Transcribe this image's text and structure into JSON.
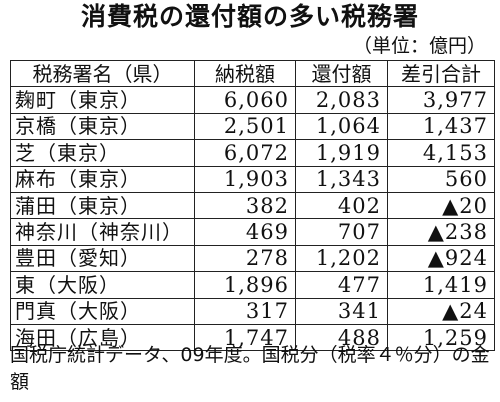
{
  "title": "消費税の還付額の多い税務署",
  "unit": "（単位：億円）",
  "table": {
    "headers": [
      "税務署名（県）",
      "納税額",
      "還付額",
      "差引合計"
    ],
    "rows": [
      {
        "office": "麹町（東京）",
        "paid": "6,060",
        "refund": "2,083",
        "net": "3,977"
      },
      {
        "office": "京橋（東京）",
        "paid": "2,501",
        "refund": "1,064",
        "net": "1,437"
      },
      {
        "office": "芝（東京）",
        "paid": "6,072",
        "refund": "1,919",
        "net": "4,153"
      },
      {
        "office": "麻布（東京）",
        "paid": "1,903",
        "refund": "1,343",
        "net": "560"
      },
      {
        "office": "蒲田（東京）",
        "paid": "382",
        "refund": "402",
        "net": "▲20"
      },
      {
        "office": "神奈川（神奈川）",
        "paid": "469",
        "refund": "707",
        "net": "▲238"
      },
      {
        "office": "豊田（愛知）",
        "paid": "278",
        "refund": "1,202",
        "net": "▲924"
      },
      {
        "office": "東（大阪）",
        "paid": "1,896",
        "refund": "477",
        "net": "1,419"
      },
      {
        "office": "門真（大阪）",
        "paid": "317",
        "refund": "341",
        "net": "▲24"
      },
      {
        "office": "海田（広島）",
        "paid": "1,747",
        "refund": "488",
        "net": "1,259"
      }
    ]
  },
  "note": "国税庁統計データ、09年度。国税分（税率４％分）の金額"
}
